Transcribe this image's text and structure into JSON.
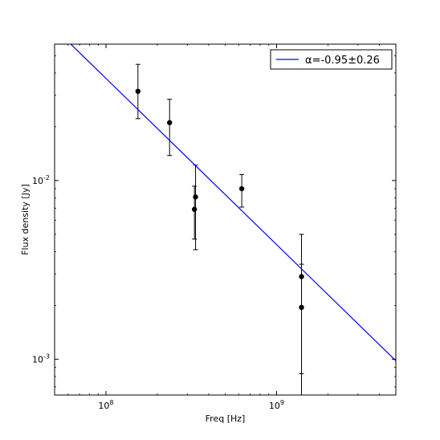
{
  "chart_data": {
    "type": "scatter",
    "title": "",
    "xlabel": "Freq [Hz]",
    "ylabel": "Flux density [Jy]",
    "xscale": "log",
    "yscale": "log",
    "xlim": [
      50000000,
      5000000000
    ],
    "ylim": [
      0.00063,
      0.058
    ],
    "grid": false,
    "legend_position": "top-right",
    "x_ticks": [
      {
        "value": 100000000,
        "base": "10",
        "exp": "8"
      },
      {
        "value": 1000000000,
        "base": "10",
        "exp": "9"
      }
    ],
    "y_ticks": [
      {
        "value": 0.001,
        "base": "10",
        "exp": "-3"
      },
      {
        "value": 0.01,
        "base": "10",
        "exp": "-2"
      }
    ],
    "points": [
      {
        "x": 154000000,
        "y": 0.0316,
        "err_low": 0.0222,
        "err_high": 0.0447
      },
      {
        "x": 236000000,
        "y": 0.0211,
        "err_low": 0.0138,
        "err_high": 0.0285
      },
      {
        "x": 330000000,
        "y": 0.0069,
        "err_low": 0.0047,
        "err_high": 0.0093
      },
      {
        "x": 335000000,
        "y": 0.0081,
        "err_low": 0.0041,
        "err_high": 0.0122
      },
      {
        "x": 625000000,
        "y": 0.009,
        "err_low": 0.0071,
        "err_high": 0.0108
      },
      {
        "x": 1400000000,
        "y": 0.0029,
        "err_low": 0.00062,
        "err_high": 0.005
      },
      {
        "x": 1400000000,
        "y": 0.00195,
        "err_low": 0.00083,
        "err_high": 0.0034
      }
    ],
    "fit_line": {
      "label": "α=-0.95±0.26",
      "alpha": -0.95,
      "x_start": 62000000,
      "y_start": 0.0582,
      "x_end": 5000000000,
      "y_end": 0.00098,
      "color": "#0000ff"
    },
    "marker_color": "#000000"
  }
}
